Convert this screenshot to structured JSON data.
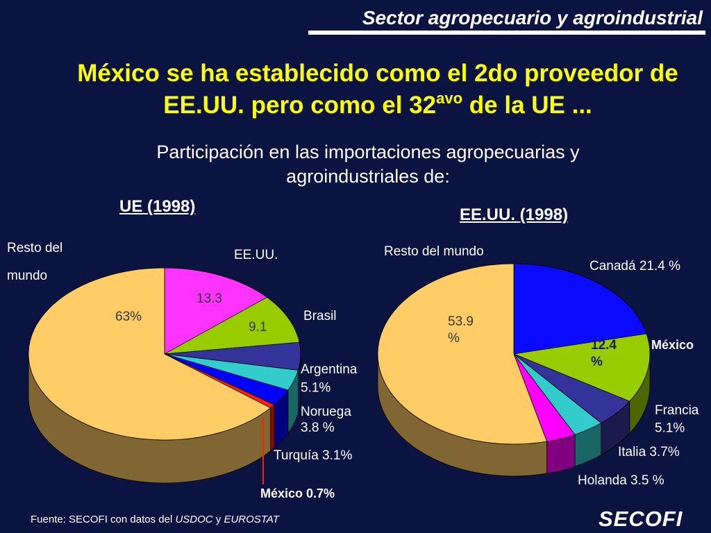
{
  "header": {
    "title": "Sector agropecuario y agroindustrial"
  },
  "title": {
    "line1": "México se ha establecido como el 2do proveedor de",
    "line2_before": "EE.UU. pero como el 32",
    "line2_sup": "avo",
    "line2_after": " de la UE ..."
  },
  "subtitle": {
    "line1": "Participación en las importaciones agropecuarias  y",
    "line2": "agroindustriales de:"
  },
  "chart_data": [
    {
      "type": "pie",
      "title": "UE (1998)",
      "slices": [
        {
          "name": "EE.UU.",
          "value": 13.3,
          "color": "#ff33ff",
          "label": "EE.UU.",
          "value_label": "13.3"
        },
        {
          "name": "Brasil",
          "value": 9.1,
          "color": "#99cc00",
          "label": "Brasil",
          "value_label": "9.1"
        },
        {
          "name": "Argentina",
          "value": 5.1,
          "color": "#333399",
          "label": "Argentina\n5.1%"
        },
        {
          "name": "Noruega",
          "value": 3.8,
          "color": "#33cccc",
          "label": "Noruega\n3.8 %"
        },
        {
          "name": "Turquía",
          "value": 3.1,
          "color": "#0000ff",
          "label": "Turquía 3.1%"
        },
        {
          "name": "México",
          "value": 0.7,
          "color": "#ff2200",
          "label": "México 0.7%"
        },
        {
          "name": "Resto del mundo",
          "value": 63,
          "color": "#ffcc66",
          "label": "Resto del\nmundo",
          "value_label": "63%"
        }
      ]
    },
    {
      "type": "pie",
      "title": "EE.UU. (1998)",
      "slices": [
        {
          "name": "Canadá",
          "value": 21.4,
          "color": "#0a0aff",
          "label": "Canadá 21.4 %"
        },
        {
          "name": "México",
          "value": 12.4,
          "color": "#99cc00",
          "label": "México",
          "value_label": "12.4\n%"
        },
        {
          "name": "Francia",
          "value": 5.1,
          "color": "#333399",
          "label": "Francia\n5.1%"
        },
        {
          "name": "Italia",
          "value": 3.7,
          "color": "#33cccc",
          "label": "Italia 3.7%"
        },
        {
          "name": "Holanda",
          "value": 3.5,
          "color": "#ff00ff",
          "label": "Holanda 3.5 %"
        },
        {
          "name": "Resto del mundo",
          "value": 53.9,
          "color": "#ffcc66",
          "label": "Resto del mundo",
          "value_label": "53.9\n%"
        }
      ]
    }
  ],
  "footer": {
    "prefix": "Fuente: SECOFI con datos del ",
    "usdoc": "USDOC",
    "mid": " y ",
    "eurostat": "EUROSTAT"
  },
  "logo": {
    "text": "SECOFI"
  }
}
